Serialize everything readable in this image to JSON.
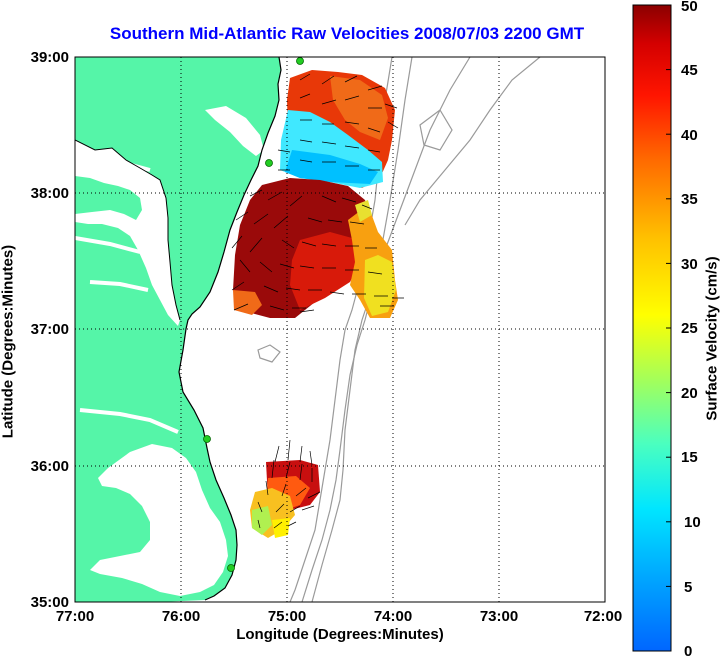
{
  "title": "Southern Mid-Atlantic Raw Velocities 2008/07/03 2200 GMT",
  "xlabel": "Longitude (Degrees:Minutes)",
  "ylabel": "Latitude (Degrees:Minutes)",
  "colorbar_label": "Surface Velocity (cm/s)",
  "x_ticks": [
    "77:00",
    "76:00",
    "75:00",
    "74:00",
    "73:00",
    "72:00"
  ],
  "y_ticks": [
    "39:00",
    "38:00",
    "37:00",
    "36:00",
    "35:00"
  ],
  "colorbar_ticks": [
    "50",
    "45",
    "40",
    "35",
    "30",
    "25",
    "20",
    "15",
    "10",
    "5",
    "0"
  ],
  "colors": {
    "title": "#0000ff",
    "land": "#55f5a8",
    "water": "#ffffff",
    "bathymetry": "#9a9a9a",
    "station": "#22cc22",
    "arrows": "#000000"
  },
  "map": {
    "lon_range": [
      -77,
      -72
    ],
    "lat_range": [
      35,
      39
    ],
    "grid": "dotted",
    "colormap": "jet",
    "velocity_range_cm_s": [
      0,
      50
    ]
  },
  "stations": [
    {
      "lon": -74.88,
      "lat": 38.95
    },
    {
      "lon": -75.15,
      "lat": 38.22
    },
    {
      "lon": -75.65,
      "lat": 36.18
    },
    {
      "lon": -75.53,
      "lat": 35.27
    }
  ]
}
